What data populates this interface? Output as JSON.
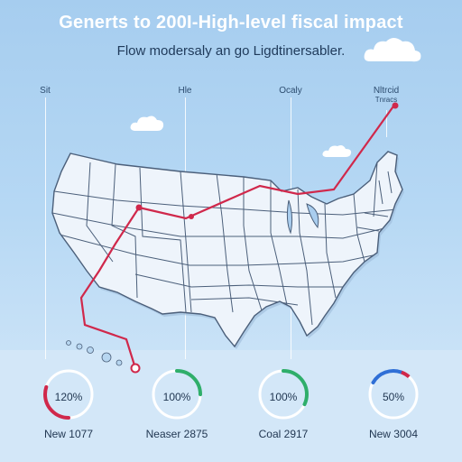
{
  "header": {
    "title": "Generts to 200I-High-level fiscal impact",
    "subtitle": "Flow modersaly an go Ligdtinersabler."
  },
  "columns": [
    {
      "label": "Sit",
      "sublabel": ""
    },
    {
      "label": "Hle",
      "sublabel": ""
    },
    {
      "label": "Ocaly",
      "sublabel": ""
    },
    {
      "label": "Nltrcid",
      "sublabel": "Tnracs"
    }
  ],
  "gauges": [
    {
      "value_label": "120%",
      "caption": "New 1077",
      "fraction": 0.3,
      "color": "#d0284b"
    },
    {
      "value_label": "100%",
      "caption": "Neaser 2875",
      "fraction": 0.25,
      "color": "#2fae6a"
    },
    {
      "value_label": "100%",
      "caption": "Coal 2917",
      "fraction": 0.32,
      "color": "#2fae6a"
    },
    {
      "value_label": "50%",
      "caption": "New 3004",
      "fraction": 0.22,
      "color": "#2f6fd6",
      "accent": "#d0284b"
    }
  ],
  "colors": {
    "route": "#d0284b",
    "land": "#eef4fb",
    "border": "#4b5f7a",
    "title": "#ffffff"
  }
}
